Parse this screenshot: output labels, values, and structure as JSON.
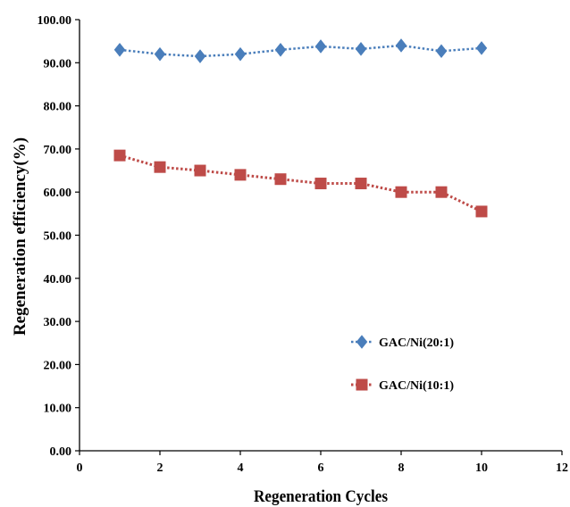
{
  "chart_data": {
    "type": "line",
    "title": "",
    "xlabel": "Regeneration Cycles",
    "ylabel": "Regeneration efficiency(%)",
    "xlim": [
      0,
      12
    ],
    "ylim": [
      0,
      100
    ],
    "x_ticks": [
      0,
      2,
      4,
      6,
      8,
      10,
      12
    ],
    "x_tick_labels": [
      "0",
      "2",
      "4",
      "6",
      "8",
      "10",
      "12"
    ],
    "y_ticks": [
      0,
      10,
      20,
      30,
      40,
      50,
      60,
      70,
      80,
      90,
      100
    ],
    "y_tick_labels": [
      "0.00",
      "10.00",
      "20.00",
      "30.00",
      "40.00",
      "50.00",
      "60.00",
      "70.00",
      "80.00",
      "90.00",
      "100.00"
    ],
    "grid": false,
    "legend_position": "lower-right",
    "series": [
      {
        "name": "GAC/Ni(20:1)",
        "marker": "diamond",
        "color": "#4a7ebb",
        "line_style": "dotted",
        "x": [
          1,
          2,
          3,
          4,
          5,
          6,
          7,
          8,
          9,
          10
        ],
        "y": [
          93.0,
          92.0,
          91.5,
          92.0,
          93.0,
          93.8,
          93.2,
          94.0,
          92.7,
          93.4
        ]
      },
      {
        "name": "GAC/Ni(10:1)",
        "marker": "square",
        "color": "#be4b48",
        "line_style": "dotted",
        "x": [
          1,
          2,
          3,
          4,
          5,
          6,
          7,
          8,
          9,
          10
        ],
        "y": [
          68.5,
          65.8,
          65.0,
          64.0,
          63.0,
          62.0,
          62.0,
          60.0,
          60.0,
          55.5
        ]
      }
    ]
  }
}
